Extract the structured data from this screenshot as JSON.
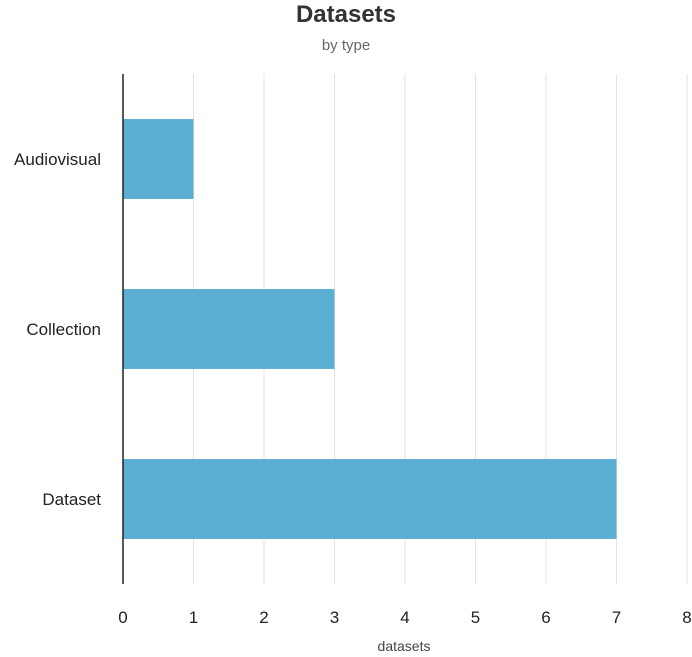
{
  "chart_data": {
    "type": "bar",
    "orientation": "horizontal",
    "title": "Datasets",
    "subtitle": "by type",
    "categories": [
      "Audiovisual",
      "Collection",
      "Dataset"
    ],
    "series": [
      {
        "values": [
          1,
          3,
          7
        ]
      }
    ],
    "xlabel": "datasets",
    "ylabel": "",
    "xlim": [
      0,
      8
    ],
    "xticks": [
      0,
      1,
      2,
      3,
      4,
      5,
      6,
      7,
      8
    ],
    "grid": true,
    "legend": "none",
    "bar_color": "#5aaed1",
    "grid_color": "#e3e3e3",
    "axis_color": "#222222"
  }
}
